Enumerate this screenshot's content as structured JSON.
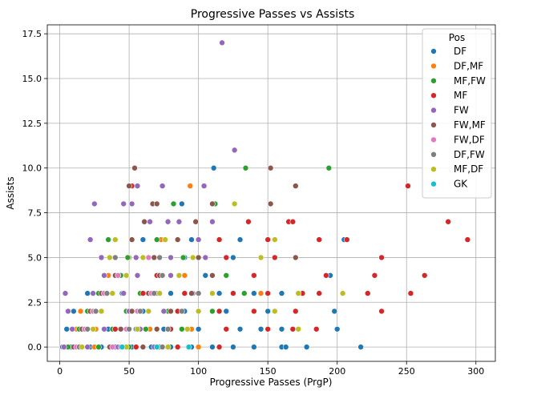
{
  "chart_data": {
    "type": "scatter",
    "title": "Progressive Passes vs Assists",
    "xlabel": "Progressive Passes (PrgP)",
    "ylabel": "Assists",
    "xlim": [
      -9,
      314
    ],
    "ylim": [
      -0.8,
      18.0
    ],
    "xticks": [
      0,
      50,
      100,
      150,
      200,
      250,
      300
    ],
    "yticks": [
      0.0,
      2.5,
      5.0,
      7.5,
      10.0,
      12.5,
      15.0,
      17.5
    ],
    "xtick_labels": [
      "0",
      "50",
      "100",
      "150",
      "200",
      "250",
      "300"
    ],
    "ytick_labels": [
      "0.0",
      "2.5",
      "5.0",
      "7.5",
      "10.0",
      "12.5",
      "15.0",
      "17.5"
    ],
    "grid": true,
    "legend": {
      "title": "Pos",
      "placement": "top-right",
      "entries": [
        "DF",
        "DF,MF",
        "MF,FW",
        "MF",
        "FW",
        "FW,MF",
        "FW,DF",
        "DF,FW",
        "MF,DF",
        "GK"
      ]
    },
    "series": [
      {
        "name": "DF",
        "color": "#1f77b4",
        "points": [
          [
            2,
            0
          ],
          [
            8,
            0
          ],
          [
            15,
            0
          ],
          [
            22,
            0
          ],
          [
            30,
            0
          ],
          [
            40,
            0
          ],
          [
            52,
            0
          ],
          [
            66,
            0
          ],
          [
            80,
            0
          ],
          [
            95,
            0
          ],
          [
            110,
            0
          ],
          [
            125,
            0
          ],
          [
            140,
            0
          ],
          [
            160,
            0
          ],
          [
            163,
            0
          ],
          [
            178,
            0
          ],
          [
            217,
            0
          ],
          [
            5,
            1
          ],
          [
            18,
            1
          ],
          [
            35,
            1
          ],
          [
            55,
            1
          ],
          [
            75,
            1
          ],
          [
            100,
            1
          ],
          [
            130,
            1
          ],
          [
            145,
            1
          ],
          [
            160,
            1
          ],
          [
            200,
            1
          ],
          [
            10,
            2
          ],
          [
            30,
            2
          ],
          [
            60,
            2
          ],
          [
            90,
            2
          ],
          [
            120,
            2
          ],
          [
            150,
            2
          ],
          [
            170,
            2
          ],
          [
            198,
            2
          ],
          [
            20,
            3
          ],
          [
            45,
            3
          ],
          [
            80,
            3
          ],
          [
            115,
            3
          ],
          [
            140,
            3
          ],
          [
            160,
            3
          ],
          [
            40,
            4
          ],
          [
            70,
            4
          ],
          [
            105,
            4
          ],
          [
            140,
            4
          ],
          [
            195,
            4
          ],
          [
            55,
            5
          ],
          [
            90,
            5
          ],
          [
            125,
            5
          ],
          [
            60,
            6
          ],
          [
            95,
            6
          ],
          [
            130,
            6
          ],
          [
            205,
            6
          ],
          [
            88,
            8
          ],
          [
            111,
            10
          ]
        ]
      },
      {
        "name": "DF,MF",
        "color": "#ff7f0e",
        "points": [
          [
            4,
            0
          ],
          [
            25,
            0
          ],
          [
            45,
            0
          ],
          [
            70,
            0
          ],
          [
            100,
            0
          ],
          [
            12,
            1
          ],
          [
            40,
            1
          ],
          [
            65,
            1
          ],
          [
            95,
            1
          ],
          [
            15,
            2
          ],
          [
            50,
            2
          ],
          [
            85,
            2
          ],
          [
            30,
            3
          ],
          [
            60,
            3
          ],
          [
            100,
            3
          ],
          [
            145,
            3
          ],
          [
            35,
            4
          ],
          [
            90,
            4
          ],
          [
            50,
            5
          ],
          [
            73,
            6
          ],
          [
            94,
            9
          ],
          [
            26,
            1
          ]
        ]
      },
      {
        "name": "MF,FW",
        "color": "#2ca02c",
        "points": [
          [
            6,
            0
          ],
          [
            28,
            0
          ],
          [
            50,
            0
          ],
          [
            72,
            0
          ],
          [
            14,
            1
          ],
          [
            38,
            1
          ],
          [
            62,
            1
          ],
          [
            88,
            1
          ],
          [
            20,
            2
          ],
          [
            48,
            2
          ],
          [
            78,
            2
          ],
          [
            110,
            2
          ],
          [
            28,
            3
          ],
          [
            58,
            3
          ],
          [
            96,
            3
          ],
          [
            133,
            3
          ],
          [
            44,
            4
          ],
          [
            86,
            4
          ],
          [
            120,
            4
          ],
          [
            49,
            5
          ],
          [
            89,
            5
          ],
          [
            35,
            6
          ],
          [
            70,
            6
          ],
          [
            115,
            6
          ],
          [
            82,
            8
          ],
          [
            112,
            8
          ],
          [
            134,
            10
          ],
          [
            194,
            10
          ]
        ]
      },
      {
        "name": "MF",
        "color": "#d62728",
        "points": [
          [
            55,
            0
          ],
          [
            85,
            0
          ],
          [
            115,
            0
          ],
          [
            40,
            1
          ],
          [
            80,
            1
          ],
          [
            120,
            1
          ],
          [
            150,
            1
          ],
          [
            168,
            1
          ],
          [
            185,
            1
          ],
          [
            50,
            2
          ],
          [
            85,
            2
          ],
          [
            115,
            2
          ],
          [
            140,
            2
          ],
          [
            170,
            2
          ],
          [
            232,
            2
          ],
          [
            60,
            3
          ],
          [
            90,
            3
          ],
          [
            125,
            3
          ],
          [
            150,
            3
          ],
          [
            175,
            3
          ],
          [
            187,
            3
          ],
          [
            222,
            3
          ],
          [
            253,
            3
          ],
          [
            70,
            4
          ],
          [
            110,
            4
          ],
          [
            140,
            4
          ],
          [
            192,
            4
          ],
          [
            227,
            4
          ],
          [
            263,
            4
          ],
          [
            80,
            5
          ],
          [
            120,
            5
          ],
          [
            155,
            5
          ],
          [
            170,
            5
          ],
          [
            232,
            5
          ],
          [
            52,
            6
          ],
          [
            85,
            6
          ],
          [
            115,
            6
          ],
          [
            150,
            6
          ],
          [
            187,
            6
          ],
          [
            207,
            6
          ],
          [
            294,
            6
          ],
          [
            136,
            7
          ],
          [
            165,
            7
          ],
          [
            168,
            7
          ],
          [
            280,
            7
          ],
          [
            52,
            9
          ],
          [
            251,
            9
          ]
        ]
      },
      {
        "name": "FW",
        "color": "#9467bd",
        "points": [
          [
            3,
            0
          ],
          [
            20,
            0
          ],
          [
            42,
            0
          ],
          [
            68,
            0
          ],
          [
            9,
            1
          ],
          [
            32,
            1
          ],
          [
            58,
            1
          ],
          [
            6,
            2
          ],
          [
            26,
            2
          ],
          [
            50,
            2
          ],
          [
            75,
            2
          ],
          [
            4,
            3
          ],
          [
            24,
            3
          ],
          [
            46,
            3
          ],
          [
            70,
            3
          ],
          [
            96,
            3
          ],
          [
            32,
            4
          ],
          [
            56,
            4
          ],
          [
            80,
            4
          ],
          [
            30,
            5
          ],
          [
            55,
            5
          ],
          [
            80,
            5
          ],
          [
            105,
            5
          ],
          [
            100,
            6
          ],
          [
            22,
            6
          ],
          [
            25,
            8
          ],
          [
            46,
            8
          ],
          [
            52,
            8
          ],
          [
            65,
            7
          ],
          [
            78,
            7
          ],
          [
            86,
            7
          ],
          [
            110,
            7
          ],
          [
            56,
            9
          ],
          [
            74,
            9
          ],
          [
            104,
            9
          ],
          [
            126,
            11
          ],
          [
            117,
            17
          ]
        ]
      },
      {
        "name": "FW,MF",
        "color": "#8c564b",
        "points": [
          [
            10,
            0
          ],
          [
            36,
            0
          ],
          [
            60,
            0
          ],
          [
            16,
            1
          ],
          [
            44,
            1
          ],
          [
            70,
            1
          ],
          [
            22,
            2
          ],
          [
            52,
            2
          ],
          [
            80,
            2
          ],
          [
            30,
            3
          ],
          [
            64,
            3
          ],
          [
            95,
            3
          ],
          [
            40,
            4
          ],
          [
            72,
            4
          ],
          [
            110,
            4
          ],
          [
            36,
            5
          ],
          [
            68,
            5
          ],
          [
            100,
            5
          ],
          [
            170,
            5
          ],
          [
            52,
            6
          ],
          [
            85,
            6
          ],
          [
            67,
            8
          ],
          [
            70,
            8
          ],
          [
            110,
            8
          ],
          [
            152,
            8
          ],
          [
            61,
            7
          ],
          [
            98,
            7
          ],
          [
            50,
            9
          ],
          [
            170,
            9
          ],
          [
            54,
            10
          ],
          [
            152,
            10
          ]
        ]
      },
      {
        "name": "FW,DF",
        "color": "#e377c2",
        "points": [
          [
            12,
            0
          ],
          [
            38,
            0
          ],
          [
            18,
            1
          ],
          [
            48,
            1
          ],
          [
            24,
            2
          ],
          [
            56,
            2
          ],
          [
            32,
            3
          ],
          [
            66,
            3
          ],
          [
            42,
            4
          ],
          [
            64,
            5
          ]
        ]
      },
      {
        "name": "DF,FW",
        "color": "#7f7f7f",
        "points": [
          [
            14,
            0
          ],
          [
            44,
            0
          ],
          [
            74,
            0
          ],
          [
            20,
            1
          ],
          [
            50,
            1
          ],
          [
            78,
            1
          ],
          [
            26,
            2
          ],
          [
            58,
            2
          ],
          [
            88,
            2
          ],
          [
            34,
            3
          ],
          [
            68,
            3
          ],
          [
            100,
            3
          ],
          [
            48,
            4
          ],
          [
            74,
            4
          ],
          [
            40,
            5
          ],
          [
            72,
            5
          ]
        ]
      },
      {
        "name": "MF,DF",
        "color": "#bcbd22",
        "points": [
          [
            16,
            0
          ],
          [
            48,
            0
          ],
          [
            78,
            0
          ],
          [
            24,
            1
          ],
          [
            56,
            1
          ],
          [
            92,
            1
          ],
          [
            172,
            1
          ],
          [
            30,
            2
          ],
          [
            64,
            2
          ],
          [
            100,
            2
          ],
          [
            155,
            2
          ],
          [
            38,
            3
          ],
          [
            72,
            3
          ],
          [
            110,
            3
          ],
          [
            172,
            3
          ],
          [
            204,
            3
          ],
          [
            48,
            4
          ],
          [
            86,
            4
          ],
          [
            36,
            5
          ],
          [
            60,
            5
          ],
          [
            96,
            5
          ],
          [
            145,
            5
          ],
          [
            40,
            6
          ],
          [
            76,
            6
          ],
          [
            155,
            6
          ],
          [
            126,
            8
          ]
        ]
      },
      {
        "name": "GK",
        "color": "#17becf",
        "points": [
          [
            45,
            0
          ],
          [
            70,
            0
          ],
          [
            93,
            0
          ]
        ]
      }
    ]
  }
}
